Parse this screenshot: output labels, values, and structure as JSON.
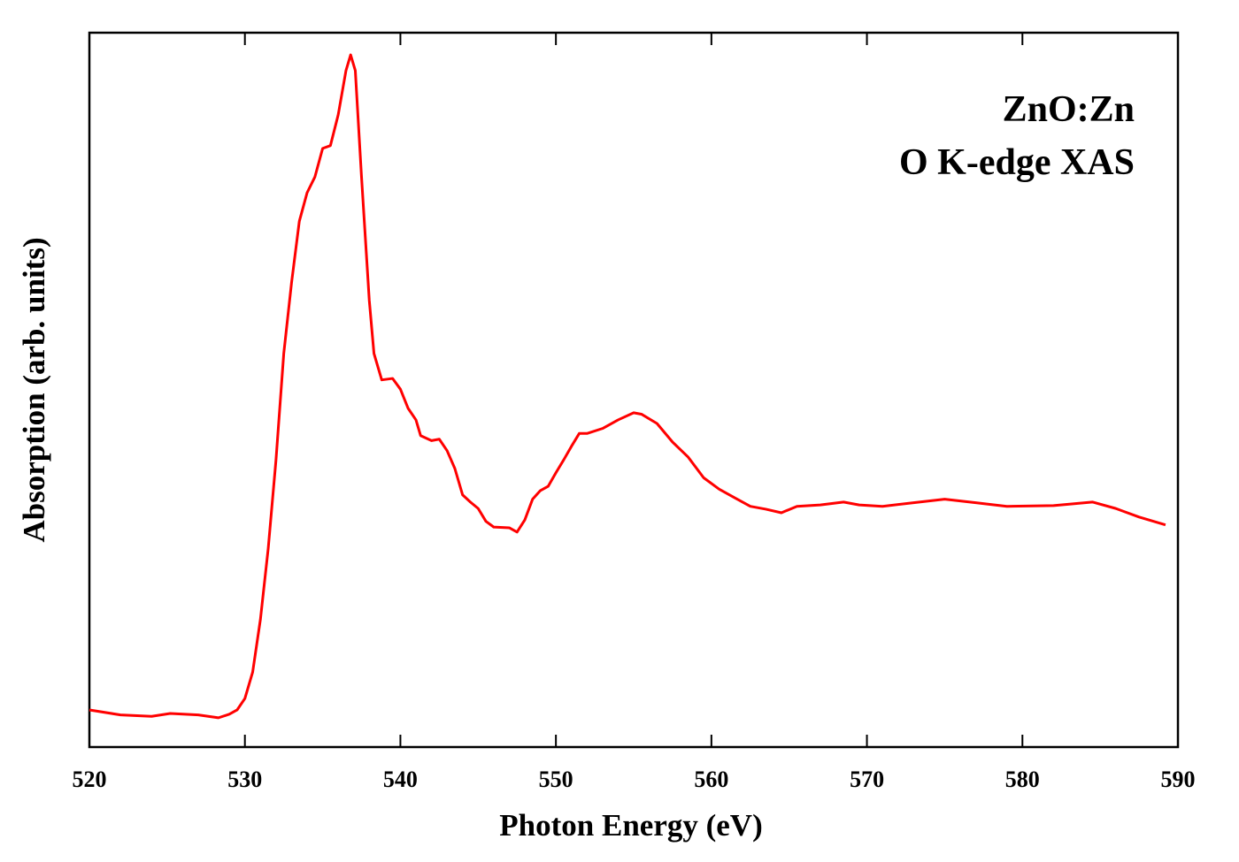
{
  "chart_data": {
    "type": "line",
    "xlabel": "Photon Energy (eV)",
    "ylabel": "Absorption (arb. units)",
    "annotations": [
      "ZnO:Zn",
      "O K-edge XAS"
    ],
    "xlim": [
      520,
      590
    ],
    "xticks": [
      520,
      530,
      540,
      550,
      560,
      570,
      580,
      590
    ],
    "ylim": [
      0,
      1
    ],
    "series": [
      {
        "color": "#ff0000",
        "x": [
          520,
          522,
          524,
          525.2,
          527,
          528.3,
          529,
          529.5,
          530,
          530.5,
          531,
          531.5,
          532,
          532.5,
          533,
          533.5,
          534,
          534.5,
          535,
          535.5,
          536,
          536.5,
          536.8,
          537.1,
          537.5,
          538,
          538.3,
          538.8,
          539.5,
          540,
          540.5,
          541,
          541.3,
          542,
          542.5,
          543,
          543.5,
          544,
          544.5,
          545,
          545.5,
          546,
          547,
          547.5,
          548,
          548.5,
          549,
          549.5,
          550,
          550.5,
          551,
          551.5,
          552,
          553,
          554,
          555,
          555.5,
          556.5,
          557.5,
          558.5,
          559.5,
          560.5,
          561.5,
          562.5,
          563.5,
          564.5,
          565.5,
          567,
          568.5,
          569.5,
          571,
          573,
          575,
          577,
          579,
          582,
          584.5,
          586,
          587.5,
          589.2
        ],
        "values": [
          0.052,
          0.045,
          0.043,
          0.047,
          0.045,
          0.041,
          0.046,
          0.052,
          0.068,
          0.105,
          0.179,
          0.278,
          0.402,
          0.551,
          0.65,
          0.736,
          0.776,
          0.798,
          0.838,
          0.842,
          0.885,
          0.947,
          0.969,
          0.947,
          0.798,
          0.625,
          0.551,
          0.514,
          0.516,
          0.501,
          0.474,
          0.458,
          0.436,
          0.429,
          0.431,
          0.415,
          0.39,
          0.353,
          0.343,
          0.334,
          0.316,
          0.308,
          0.307,
          0.301,
          0.318,
          0.347,
          0.359,
          0.365,
          0.384,
          0.402,
          0.421,
          0.439,
          0.439,
          0.446,
          0.458,
          0.468,
          0.466,
          0.453,
          0.427,
          0.406,
          0.377,
          0.361,
          0.349,
          0.337,
          0.333,
          0.328,
          0.337,
          0.339,
          0.343,
          0.339,
          0.337,
          0.342,
          0.347,
          0.342,
          0.337,
          0.338,
          0.343,
          0.334,
          0.322,
          0.311
        ]
      }
    ]
  }
}
